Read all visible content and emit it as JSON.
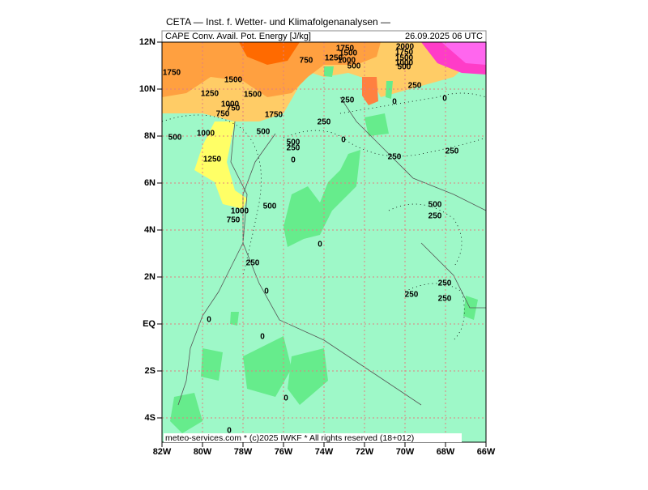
{
  "header": {
    "title": "CETA — Inst. f. Wetter- und Klimafolgenanalysen —",
    "field": "CAPE Conv. Avail. Pot. Energy [J/kg]",
    "valid": "26.09.2025 06 UTC"
  },
  "map": {
    "lat_labels": [
      "12N",
      "10N",
      "8N",
      "6N",
      "4N",
      "2N",
      "EQ",
      "2S",
      "4S"
    ],
    "lon_labels": [
      "82W",
      "80W",
      "78W",
      "76W",
      "74W",
      "72W",
      "70W",
      "68W",
      "66W"
    ],
    "contour_labels": [
      "1750",
      "1500",
      "1250",
      "1500",
      "1000",
      "750",
      "750",
      "1750",
      "1000",
      "500",
      "500",
      "250",
      "500",
      "250",
      "0",
      "1250",
      "0",
      "250",
      "250",
      "500",
      "500",
      "1000",
      "250",
      "750",
      "0",
      "250",
      "250",
      "0",
      "250",
      "250",
      "0",
      "0",
      "0",
      "0",
      "1750",
      "1500",
      "1250",
      "750",
      "1000",
      "500",
      "2000",
      "1750",
      "1500",
      "1000",
      "500",
      "250",
      "250",
      "0",
      "0"
    ]
  },
  "footer": "meteo-services.com * (c)2025 IWKF * All rights reserved (18+012)"
}
